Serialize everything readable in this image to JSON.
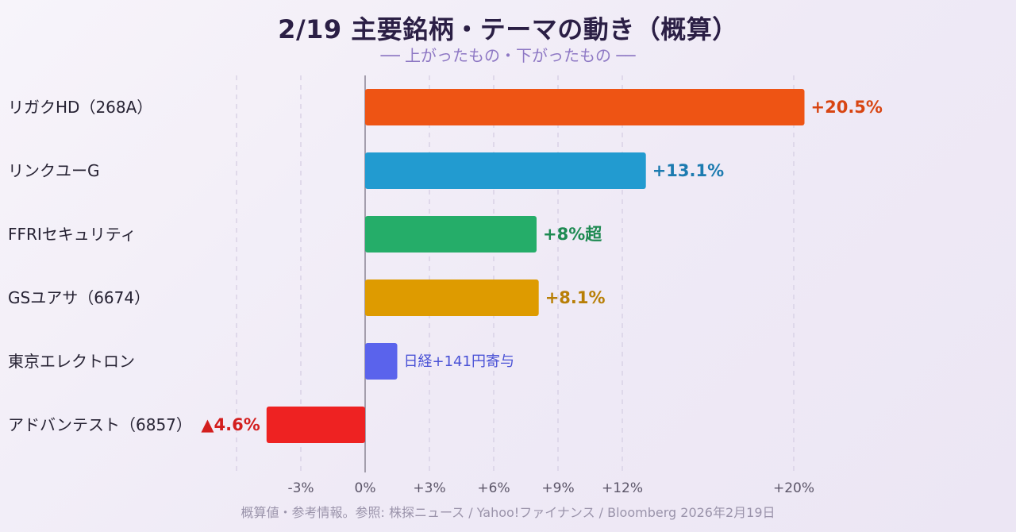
{
  "header": {
    "title": "2/19 主要銘柄・テーマの動き（概算）",
    "subtitle": "── 上がったもの・下がったもの ──"
  },
  "footer": {
    "note": "概算値・参考情報。参照: 株探ニュース / Yahoo!ファイナンス / Bloomberg 2026年2月19日"
  },
  "chart_data": {
    "type": "bar",
    "orientation": "horizontal",
    "title": "2/19 主要銘柄・テーマの動き（概算）",
    "subtitle": "── 上がったもの・下がったもの ──",
    "xlabel": "",
    "ylabel": "",
    "xlim": [
      -5,
      25
    ],
    "grid": true,
    "x_ticks": [
      {
        "value": -3,
        "label": "-3%"
      },
      {
        "value": 0,
        "label": "0%"
      },
      {
        "value": 3,
        "label": "+3%"
      },
      {
        "value": 6,
        "label": "+6%"
      },
      {
        "value": 9,
        "label": "+9%"
      },
      {
        "value": 12,
        "label": "+12%"
      },
      {
        "value": 20,
        "label": "+20%"
      }
    ],
    "bars": [
      {
        "category": "リガクHD（268A）",
        "value": 20.5,
        "label": "+20.5%",
        "color": "#ee5414",
        "label_color": "#d84512",
        "label_style": "bold",
        "category_color": "#262233"
      },
      {
        "category": "リンクユーG",
        "value": 13.1,
        "label": "+13.1%",
        "color": "#229bd0",
        "label_color": "#1c7bb0",
        "label_style": "bold",
        "category_color": "#262233"
      },
      {
        "category": "FFRIセキュリティ",
        "value": 8.0,
        "label": "+8%超",
        "color": "#25ad69",
        "label_color": "#1e8a52",
        "label_style": "bold",
        "category_color": "#262233"
      },
      {
        "category": "GSユアサ（6674）",
        "value": 8.1,
        "label": "+8.1%",
        "color": "#de9b00",
        "label_color": "#b87f06",
        "label_style": "bold",
        "category_color": "#262233"
      },
      {
        "category": "東京エレクトロン",
        "value": 1.5,
        "label": "日経+141円寄与",
        "color": "#5a63ec",
        "label_color": "#4a52d6",
        "label_style": "normal",
        "category_color": "#262233"
      },
      {
        "category": "アドバンテスト（6857）",
        "value": -4.6,
        "label": "▲4.6%",
        "color": "#ee2222",
        "label_color": "#d31e1e",
        "label_style": "bold",
        "category_color": "#c0392b"
      }
    ]
  }
}
